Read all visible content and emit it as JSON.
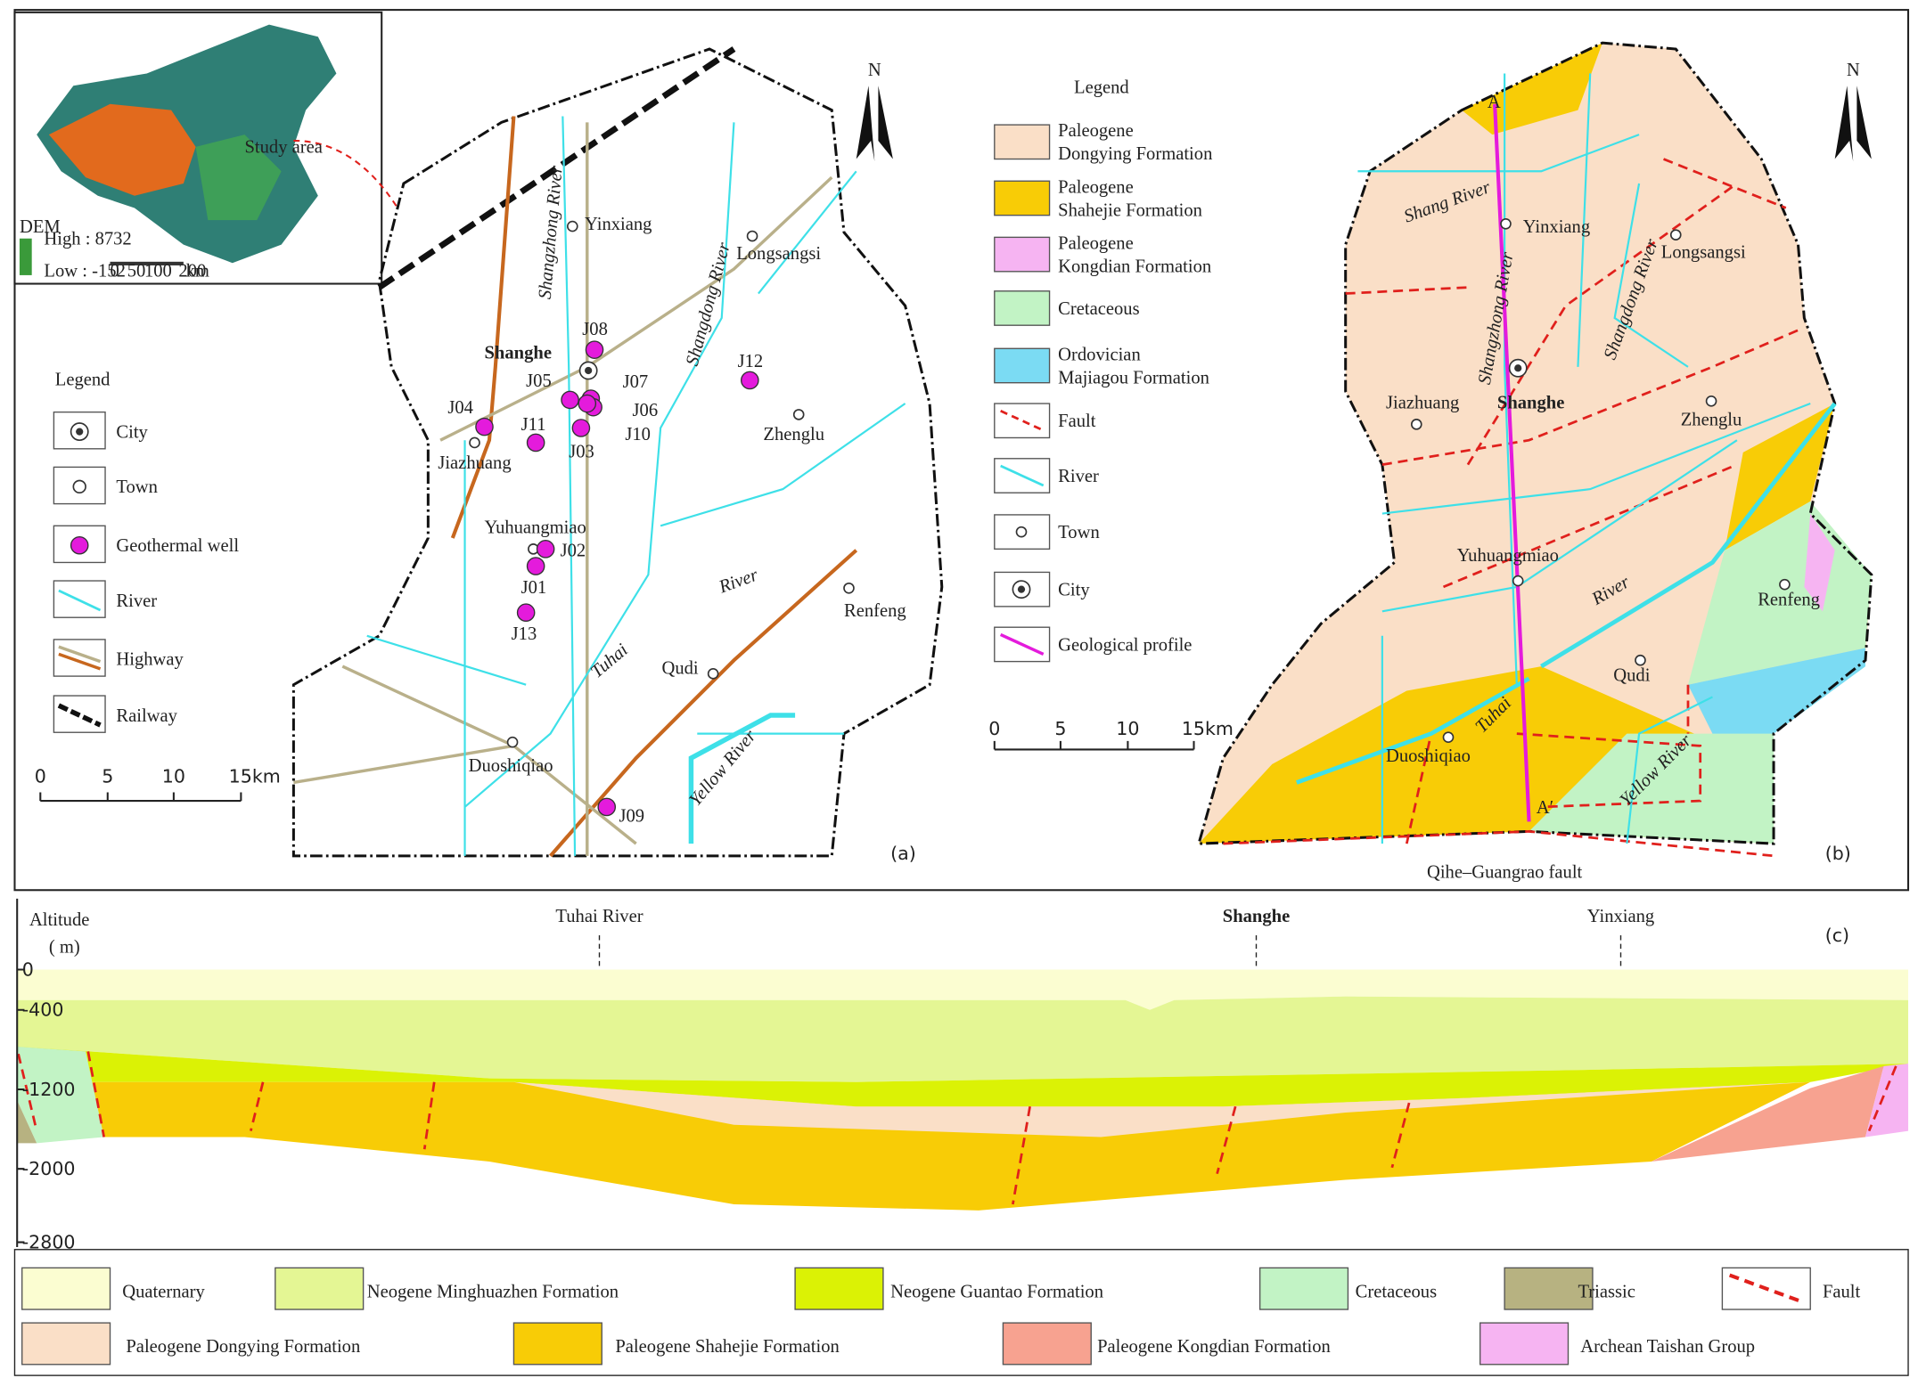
{
  "panel_a": {
    "label": "(a)",
    "north": "N",
    "inset": {
      "annotation": "Study area",
      "legend_title": "DEM",
      "high": "High : 8732",
      "low": "Low : -152",
      "scale": [
        "0",
        "50",
        "100",
        "200",
        "km"
      ]
    },
    "legend": {
      "title": "Legend",
      "items": [
        "City",
        "Town",
        "Geothermal well",
        "River",
        "Highway",
        "Railway"
      ]
    },
    "city": "Shanghe",
    "towns": [
      "Yinxiang",
      "Longsangsi",
      "Jiazhuang",
      "Zhenglu",
      "Yuhuangmiao",
      "Renfeng",
      "Qudi",
      "Duoshiqiao"
    ],
    "wells": [
      "J08",
      "J05",
      "J07",
      "J06",
      "J10",
      "J04",
      "J11",
      "J03",
      "J12",
      "J02",
      "J01",
      "J13",
      "J09"
    ],
    "rivers": [
      "Shangzhong River",
      "Shangdong River",
      "River",
      "Tuhai",
      "Yellow River"
    ],
    "scale": [
      "0",
      "5",
      "10",
      "15km"
    ]
  },
  "panel_b": {
    "label": "(b)",
    "north": "N",
    "legend": {
      "title": "Legend",
      "items": [
        [
          "Paleogene",
          "Dongying Formation"
        ],
        [
          "Paleogene",
          "Shahejie Formation"
        ],
        [
          "Paleogene",
          "Kongdian Formation"
        ],
        [
          "Cretaceous"
        ],
        [
          "Ordovician",
          "Majiagou Formation"
        ],
        [
          "Fault"
        ],
        [
          "River"
        ],
        [
          "Town"
        ],
        [
          "City"
        ],
        [
          "Geological profile"
        ]
      ]
    },
    "city": "Shanghe",
    "towns": [
      "Yinxiang",
      "Longsangsi",
      "Jiazhuang",
      "Zhenglu",
      "Yuhuangmiao",
      "Renfeng",
      "Qudi",
      "Duoshiqiao"
    ],
    "rivers": [
      "Shang River",
      "Shangzhong River",
      "Shangdong River",
      "River",
      "Tuhai",
      "Yellow River"
    ],
    "profile_ends": [
      "A",
      "A′"
    ],
    "fault": "Qihe–Guangrao fault",
    "scale": [
      "0",
      "5",
      "10",
      "15km"
    ]
  },
  "panel_c": {
    "label": "(c)",
    "axis_title": [
      "Altitude",
      "( m)"
    ],
    "altitude_ticks": [
      0,
      -400,
      -1200,
      -2000,
      -2800
    ],
    "places": [
      "Tuhai River",
      "Shanghe",
      "Yinxiang"
    ],
    "legend": [
      "Quaternary",
      "Neogene Minghuazhen Formation",
      "Neogene Guantao Formation",
      "Cretaceous",
      "Triassic",
      "Fault",
      "Paleogene Dongying Formation",
      "Paleogene Shahejie Formation",
      "Paleogene Kongdian Formation",
      "Archean Taishan Group"
    ]
  }
}
